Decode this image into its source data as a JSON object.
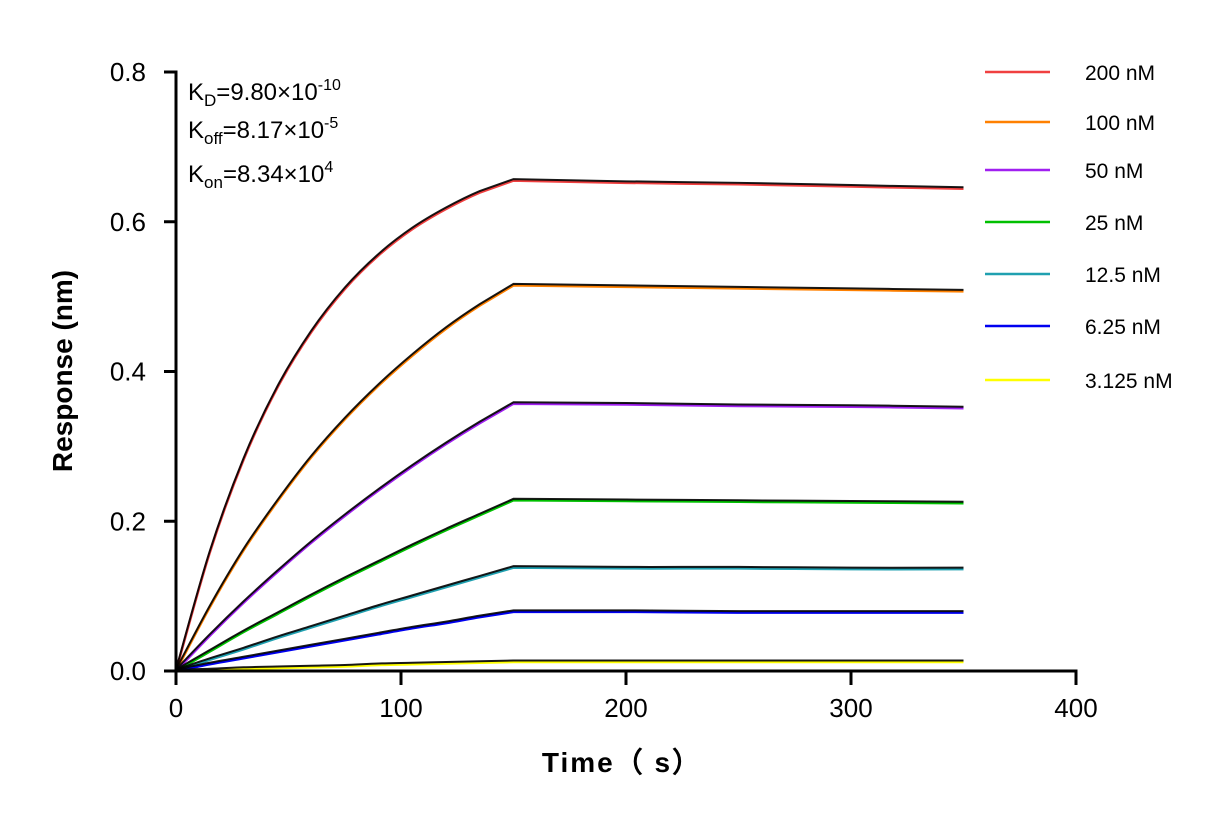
{
  "chart_data": {
    "type": "line",
    "title": "",
    "xlabel": "Time（ s）",
    "ylabel": "Response (nm)",
    "xlim": [
      0,
      400
    ],
    "ylim": [
      0,
      0.8
    ],
    "xticks": [
      "0",
      "100",
      "200",
      "300",
      "400"
    ],
    "yticks": [
      "0.0",
      "0.2",
      "0.4",
      "0.6",
      "0.8"
    ],
    "grid": false,
    "legend_placement": "right",
    "annotations": {
      "kd": {
        "base": "K",
        "sub": "D",
        "text": "=9.80×10",
        "sup": "-10"
      },
      "koff": {
        "base": "K",
        "sub": "off",
        "text": "=8.17×10",
        "sup": "-5"
      },
      "kon": {
        "base": "K",
        "sub": "on",
        "text": "=8.34×10",
        "sup": "4"
      }
    },
    "fit_color": "#000000",
    "x": [
      0,
      15,
      30,
      45,
      60,
      75,
      90,
      105,
      120,
      135,
      150,
      200,
      250,
      300,
      350
    ],
    "series": [
      {
        "name": "200 nM",
        "color": "#f04040",
        "values": [
          0,
          0.158,
          0.282,
          0.378,
          0.452,
          0.51,
          0.555,
          0.59,
          0.617,
          0.639,
          0.655,
          0.652,
          0.65,
          0.647,
          0.644
        ]
      },
      {
        "name": "100 nM",
        "color": "#ff8000",
        "values": [
          0,
          0.085,
          0.161,
          0.226,
          0.285,
          0.336,
          0.381,
          0.421,
          0.457,
          0.488,
          0.515,
          0.513,
          0.511,
          0.509,
          0.507
        ]
      },
      {
        "name": "50 nM",
        "color": "#a020f0",
        "values": [
          0,
          0.047,
          0.091,
          0.132,
          0.171,
          0.207,
          0.241,
          0.273,
          0.303,
          0.331,
          0.357,
          0.356,
          0.354,
          0.353,
          0.351
        ]
      },
      {
        "name": "25 nM",
        "color": "#00c000",
        "values": [
          0,
          0.026,
          0.052,
          0.076,
          0.1,
          0.123,
          0.145,
          0.167,
          0.188,
          0.208,
          0.228,
          0.227,
          0.226,
          0.225,
          0.224
        ]
      },
      {
        "name": "12.5 nM",
        "color": "#20a0b0",
        "values": [
          0,
          0.015,
          0.029,
          0.044,
          0.058,
          0.072,
          0.086,
          0.099,
          0.112,
          0.125,
          0.138,
          0.137,
          0.137,
          0.136,
          0.136
        ]
      },
      {
        "name": "6.25 nM",
        "color": "#0000f0",
        "values": [
          0,
          0.009,
          0.017,
          0.025,
          0.033,
          0.041,
          0.049,
          0.057,
          0.064,
          0.072,
          0.079,
          0.079,
          0.078,
          0.078,
          0.078
        ]
      },
      {
        "name": "3.125 nM",
        "color": "#ffff00",
        "values": [
          0,
          0.001,
          0.003,
          0.004,
          0.005,
          0.006,
          0.008,
          0.009,
          0.01,
          0.011,
          0.012,
          0.012,
          0.012,
          0.012,
          0.012
        ]
      }
    ]
  }
}
